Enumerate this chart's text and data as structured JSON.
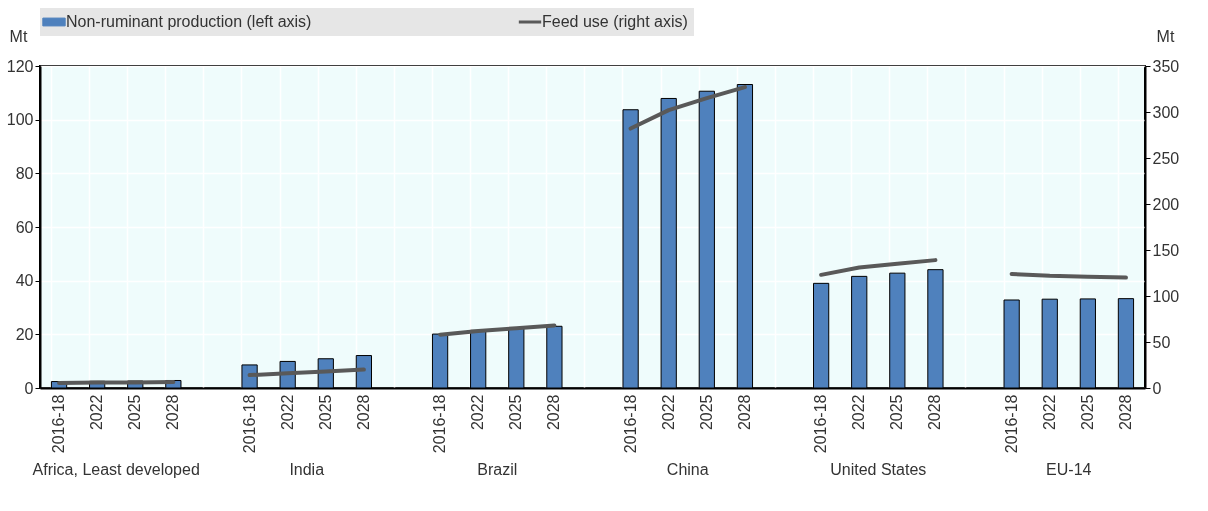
{
  "chart_data": {
    "type": "bar",
    "categories": [
      "2016-18",
      "2022",
      "2025",
      "2028",
      null,
      "2016-18",
      "2022",
      "2025",
      "2028",
      null,
      "2016-18",
      "2022",
      "2025",
      "2028",
      null,
      "2016-18",
      "2022",
      "2025",
      "2028",
      null,
      "2016-18",
      "2022",
      "2025",
      "2028",
      null,
      "2016-18",
      "2022",
      "2025",
      "2028"
    ],
    "series": [
      {
        "name": "Non-ruminant production (left axis)",
        "color": "#4f81bd",
        "values": [
          2.4,
          2.5,
          2.6,
          2.8,
          null,
          8.6,
          9.9,
          10.9,
          12.1,
          null,
          20.1,
          21.5,
          22.5,
          23.0,
          null,
          103.7,
          107.9,
          110.6,
          113.1,
          null,
          39.0,
          41.6,
          42.8,
          44.1,
          null,
          32.8,
          33.1,
          33.2,
          33.3
        ]
      },
      {
        "name": "Feed use (right axis)",
        "type": "line",
        "axis": "y2",
        "color": "#595959",
        "values": [
          5.5,
          6,
          6,
          6.5,
          null,
          14,
          16,
          18,
          20,
          null,
          58,
          62,
          65,
          68,
          null,
          282,
          302,
          315,
          327,
          null,
          123,
          131,
          135,
          139,
          null,
          124,
          122,
          121,
          120
        ]
      }
    ],
    "ylabel": "Mt",
    "y2label": "Mt",
    "ylim": [
      0,
      120
    ],
    "yticks": [
      0,
      20,
      40,
      60,
      80,
      100,
      120
    ],
    "y2lim": [
      0,
      350
    ],
    "y2ticks": [
      0,
      50,
      100,
      150,
      200,
      250,
      300,
      350
    ],
    "annotations": [
      "Africa, Least developed",
      "India",
      "Brazil",
      "China",
      "United States",
      "EU-14"
    ],
    "grid": true,
    "legend": "top"
  }
}
